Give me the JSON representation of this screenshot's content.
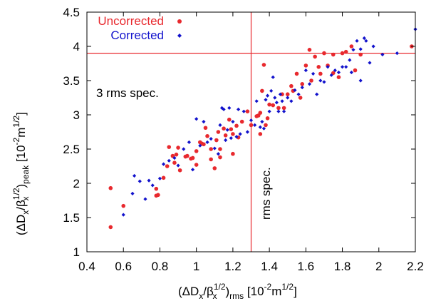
{
  "chart_data": {
    "type": "scatter",
    "xlim": [
      0.4,
      2.2
    ],
    "ylim": [
      1,
      4.5
    ],
    "x_ticks": [
      0.4,
      0.6,
      0.8,
      1,
      1.2,
      1.4,
      1.6,
      1.8,
      2,
      2.2
    ],
    "x_tick_labels": [
      "0.4",
      "0.6",
      "0.8",
      "1",
      "1.2",
      "1.4",
      "1.6",
      "1.8",
      "2",
      "2.2"
    ],
    "y_ticks": [
      1,
      1.5,
      2,
      2.5,
      3,
      3.5,
      4,
      4.5
    ],
    "y_tick_labels": [
      "1",
      "1.5",
      "2",
      "2.5",
      "3",
      "3.5",
      "4",
      "4.5"
    ],
    "xlabel": {
      "open": "(ΔD",
      "s1": "x",
      "mid": "/β",
      "s2": "x",
      "sup": "1/2",
      "close": ")",
      "s3": "rms",
      "units": " [10",
      "u_sup1": "-2",
      "u_mid": "m",
      "u_sup2": "1/2",
      "u_close": "]"
    },
    "ylabel": {
      "open": "(ΔD",
      "s1": "x",
      "mid": "/β",
      "s2": "x",
      "sup": "1/2",
      "close": ")",
      "s3": "peak",
      "units": " [10",
      "u_sup1": "-2",
      "u_mid": "m",
      "u_sup2": "1/2",
      "u_close": "]"
    },
    "grid": false,
    "legend_position": "top-left",
    "reference_lines": [
      {
        "orientation": "horizontal",
        "value": 3.9,
        "label": "3 rms spec.",
        "color": "#e8292e"
      },
      {
        "orientation": "vertical",
        "value": 1.3,
        "label": "rms spec.",
        "color": "#e8292e"
      }
    ],
    "series": [
      {
        "name": "Uncorrected",
        "color": "#e8292e",
        "marker": "circle",
        "points": [
          [
            0.53,
            1.93
          ],
          [
            0.53,
            1.36
          ],
          [
            0.6,
            1.67
          ],
          [
            0.78,
            1.92
          ],
          [
            0.78,
            1.82
          ],
          [
            0.79,
            1.83
          ],
          [
            0.82,
            2.08
          ],
          [
            0.84,
            2.25
          ],
          [
            0.85,
            2.53
          ],
          [
            0.87,
            2.4
          ],
          [
            0.88,
            2.3
          ],
          [
            0.89,
            2.42
          ],
          [
            0.9,
            2.52
          ],
          [
            0.91,
            2.19
          ],
          [
            0.94,
            2.39
          ],
          [
            0.95,
            2.4
          ],
          [
            0.97,
            2.36
          ],
          [
            0.98,
            2.37
          ],
          [
            1.0,
            2.47
          ],
          [
            1.0,
            2.27
          ],
          [
            1.02,
            2.6
          ],
          [
            1.03,
            2.58
          ],
          [
            1.04,
            2.57
          ],
          [
            1.05,
            2.81
          ],
          [
            1.06,
            2.69
          ],
          [
            1.08,
            2.5
          ],
          [
            1.08,
            2.35
          ],
          [
            1.1,
            2.22
          ],
          [
            1.11,
            2.63
          ],
          [
            1.12,
            2.75
          ],
          [
            1.13,
            2.5
          ],
          [
            1.13,
            2.38
          ],
          [
            1.15,
            2.8
          ],
          [
            1.16,
            2.7
          ],
          [
            1.18,
            2.93
          ],
          [
            1.19,
            2.79
          ],
          [
            1.2,
            2.72
          ],
          [
            1.2,
            2.43
          ],
          [
            1.22,
            2.84
          ],
          [
            1.23,
            2.67
          ],
          [
            1.25,
            2.9
          ],
          [
            1.28,
            3.05
          ],
          [
            1.3,
            2.85
          ],
          [
            1.33,
            2.98
          ],
          [
            1.34,
            2.99
          ],
          [
            1.35,
            3.03
          ],
          [
            1.35,
            2.72
          ],
          [
            1.36,
            3.35
          ],
          [
            1.37,
            3.73
          ],
          [
            1.38,
            2.85
          ],
          [
            1.39,
            2.95
          ],
          [
            1.4,
            3.15
          ],
          [
            1.42,
            3.14
          ],
          [
            1.45,
            3.1
          ],
          [
            1.47,
            3.3
          ],
          [
            1.48,
            3.1
          ],
          [
            1.5,
            3.3
          ],
          [
            1.52,
            3.42
          ],
          [
            1.53,
            3.35
          ],
          [
            1.55,
            3.6
          ],
          [
            1.57,
            3.25
          ],
          [
            1.58,
            3.45
          ],
          [
            1.6,
            3.72
          ],
          [
            1.62,
            3.95
          ],
          [
            1.63,
            3.5
          ],
          [
            1.65,
            3.85
          ],
          [
            1.67,
            3.7
          ],
          [
            1.68,
            3.6
          ],
          [
            1.7,
            3.9
          ],
          [
            1.72,
            3.72
          ],
          [
            1.75,
            3.88
          ],
          [
            1.75,
            3.61
          ],
          [
            1.78,
            3.55
          ],
          [
            1.8,
            3.9
          ],
          [
            1.82,
            3.92
          ],
          [
            1.85,
            4.0
          ],
          [
            1.87,
            3.65
          ],
          [
            1.9,
            3.88
          ],
          [
            2.18,
            4.0
          ]
        ]
      },
      {
        "name": "Corrected",
        "color": "#1212cc",
        "marker": "diamond",
        "points": [
          [
            0.6,
            1.54
          ],
          [
            0.65,
            1.85
          ],
          [
            0.66,
            2.11
          ],
          [
            0.69,
            2.03
          ],
          [
            0.72,
            1.77
          ],
          [
            0.74,
            2.04
          ],
          [
            0.76,
            1.97
          ],
          [
            0.8,
            2.07
          ],
          [
            0.82,
            2.28
          ],
          [
            0.85,
            2.33
          ],
          [
            0.88,
            2.37
          ],
          [
            0.9,
            2.26
          ],
          [
            0.93,
            2.5
          ],
          [
            0.96,
            2.6
          ],
          [
            0.98,
            2.2
          ],
          [
            1.0,
            2.94
          ],
          [
            1.02,
            2.55
          ],
          [
            1.04,
            2.9
          ],
          [
            1.06,
            2.6
          ],
          [
            1.08,
            2.65
          ],
          [
            1.1,
            2.51
          ],
          [
            1.12,
            2.43
          ],
          [
            1.13,
            2.85
          ],
          [
            1.14,
            3.1
          ],
          [
            1.15,
            3.08
          ],
          [
            1.16,
            2.63
          ],
          [
            1.17,
            2.78
          ],
          [
            1.18,
            3.1
          ],
          [
            1.19,
            2.66
          ],
          [
            1.2,
            2.9
          ],
          [
            1.22,
            2.68
          ],
          [
            1.23,
            3.08
          ],
          [
            1.24,
            2.72
          ],
          [
            1.26,
            3.05
          ],
          [
            1.28,
            2.75
          ],
          [
            1.3,
            2.92
          ],
          [
            1.32,
            2.85
          ],
          [
            1.33,
            3.2
          ],
          [
            1.35,
            2.82
          ],
          [
            1.36,
            2.9
          ],
          [
            1.37,
            2.8
          ],
          [
            1.38,
            3.22
          ],
          [
            1.39,
            3.28
          ],
          [
            1.4,
            3.05
          ],
          [
            1.41,
            3.35
          ],
          [
            1.42,
            3.55
          ],
          [
            1.43,
            3.25
          ],
          [
            1.44,
            3.18
          ],
          [
            1.45,
            3.05
          ],
          [
            1.46,
            3.3
          ],
          [
            1.47,
            3.2
          ],
          [
            1.48,
            3.05
          ],
          [
            1.5,
            3.25
          ],
          [
            1.52,
            3.2
          ],
          [
            1.54,
            3.36
          ],
          [
            1.56,
            3.3
          ],
          [
            1.58,
            3.4
          ],
          [
            1.6,
            3.65
          ],
          [
            1.62,
            3.45
          ],
          [
            1.64,
            3.6
          ],
          [
            1.66,
            3.3
          ],
          [
            1.68,
            3.5
          ],
          [
            1.7,
            3.48
          ],
          [
            1.72,
            3.7
          ],
          [
            1.74,
            3.58
          ],
          [
            1.76,
            3.65
          ],
          [
            1.78,
            3.62
          ],
          [
            1.8,
            3.7
          ],
          [
            1.82,
            3.7
          ],
          [
            1.84,
            3.8
          ],
          [
            1.86,
            3.95
          ],
          [
            1.88,
            4.08
          ],
          [
            1.9,
            3.96
          ],
          [
            1.92,
            4.12
          ],
          [
            1.93,
            4.08
          ],
          [
            1.95,
            3.76
          ],
          [
            1.97,
            4.0
          ],
          [
            2.02,
            3.88
          ],
          [
            2.1,
            3.9
          ],
          [
            2.2,
            4.25
          ],
          [
            1.85,
            3.62
          ],
          [
            1.9,
            3.5
          ]
        ]
      }
    ],
    "legend": [
      {
        "label": "Uncorrected",
        "color": "#e8292e",
        "marker": "circle"
      },
      {
        "label": "Corrected",
        "color": "#1212cc",
        "marker": "diamond"
      }
    ]
  }
}
